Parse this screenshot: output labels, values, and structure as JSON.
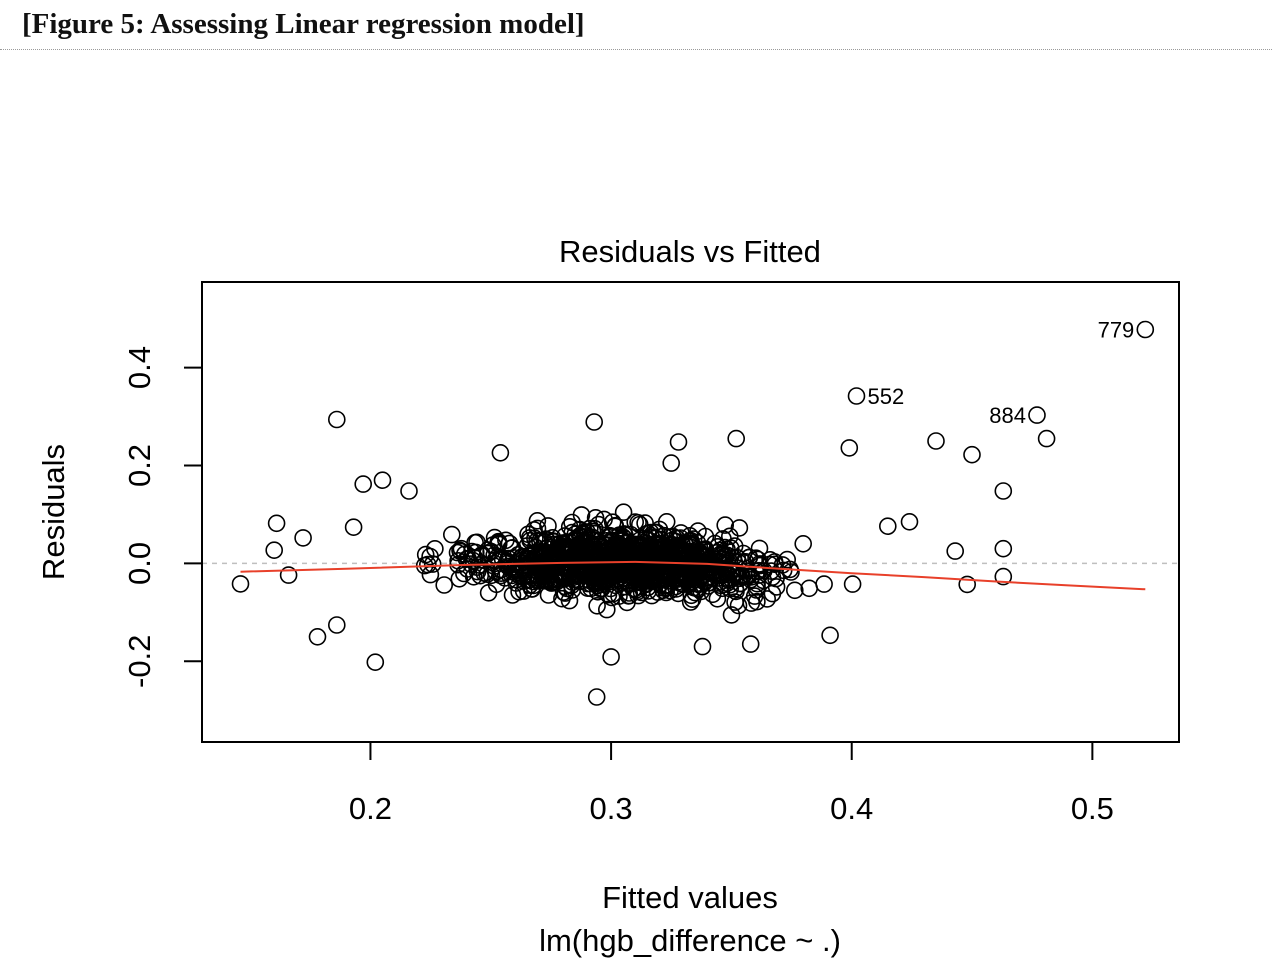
{
  "caption": "[Figure 5: Assessing Linear regression model]",
  "chart_data": {
    "type": "scatter",
    "title": "Residuals vs Fitted",
    "xlabel": "Fitted values",
    "xlabel_sub": "lm(hgb_difference ~ .)",
    "ylabel": "Residuals",
    "xlim": [
      0.13,
      0.536
    ],
    "ylim": [
      -0.365,
      0.575
    ],
    "x_ticks": [
      0.2,
      0.3,
      0.4,
      0.5
    ],
    "x_tick_labels": [
      "0.2",
      "0.3",
      "0.4",
      "0.5"
    ],
    "y_ticks": [
      -0.2,
      0.0,
      0.2,
      0.4
    ],
    "y_tick_labels": [
      "-0.2",
      "0.0",
      "0.2",
      "0.4"
    ],
    "reference_line_y": 0.0,
    "grid": false,
    "colors": {
      "points": "#000000",
      "smoother": "#e8402a",
      "reference": "#bfbfbf"
    },
    "labeled_points": [
      {
        "label": "779",
        "x": 0.522,
        "y": 0.478
      },
      {
        "label": "552",
        "x": 0.402,
        "y": 0.342
      },
      {
        "label": "884",
        "x": 0.477,
        "y": 0.303
      }
    ],
    "outliers": [
      {
        "x": 0.186,
        "y": 0.294
      },
      {
        "x": 0.293,
        "y": 0.289
      },
      {
        "x": 0.481,
        "y": 0.255
      },
      {
        "x": 0.352,
        "y": 0.255
      },
      {
        "x": 0.435,
        "y": 0.25
      },
      {
        "x": 0.328,
        "y": 0.248
      },
      {
        "x": 0.399,
        "y": 0.236
      },
      {
        "x": 0.45,
        "y": 0.222
      },
      {
        "x": 0.254,
        "y": 0.226
      },
      {
        "x": 0.325,
        "y": 0.205
      },
      {
        "x": 0.463,
        "y": 0.148
      },
      {
        "x": 0.463,
        "y": 0.03
      },
      {
        "x": 0.463,
        "y": -0.027
      },
      {
        "x": 0.146,
        "y": -0.042
      },
      {
        "x": 0.161,
        "y": 0.082
      },
      {
        "x": 0.16,
        "y": 0.027
      },
      {
        "x": 0.172,
        "y": 0.052
      },
      {
        "x": 0.166,
        "y": -0.024
      },
      {
        "x": 0.178,
        "y": -0.15
      },
      {
        "x": 0.186,
        "y": -0.126
      },
      {
        "x": 0.202,
        "y": -0.202
      },
      {
        "x": 0.294,
        "y": -0.273
      },
      {
        "x": 0.3,
        "y": -0.191
      },
      {
        "x": 0.391,
        "y": -0.147
      },
      {
        "x": 0.358,
        "y": -0.165
      },
      {
        "x": 0.338,
        "y": -0.17
      },
      {
        "x": 0.197,
        "y": 0.162
      },
      {
        "x": 0.205,
        "y": 0.17
      },
      {
        "x": 0.216,
        "y": 0.148
      },
      {
        "x": 0.193,
        "y": 0.074
      },
      {
        "x": 0.443,
        "y": 0.025
      },
      {
        "x": 0.448,
        "y": -0.043
      },
      {
        "x": 0.424,
        "y": 0.085
      },
      {
        "x": 0.415,
        "y": 0.076
      }
    ],
    "cloud": {
      "n_points": 1150,
      "x_center": 0.305,
      "x_spread": 0.042,
      "residual_sd": 0.058
    },
    "smoother": [
      {
        "x": 0.146,
        "y": -0.017
      },
      {
        "x": 0.19,
        "y": -0.011
      },
      {
        "x": 0.24,
        "y": -0.003
      },
      {
        "x": 0.28,
        "y": 0.001
      },
      {
        "x": 0.31,
        "y": 0.003
      },
      {
        "x": 0.34,
        "y": -0.001
      },
      {
        "x": 0.37,
        "y": -0.011
      },
      {
        "x": 0.4,
        "y": -0.02
      },
      {
        "x": 0.43,
        "y": -0.028
      },
      {
        "x": 0.46,
        "y": -0.037
      },
      {
        "x": 0.49,
        "y": -0.045
      },
      {
        "x": 0.522,
        "y": -0.053
      }
    ]
  }
}
